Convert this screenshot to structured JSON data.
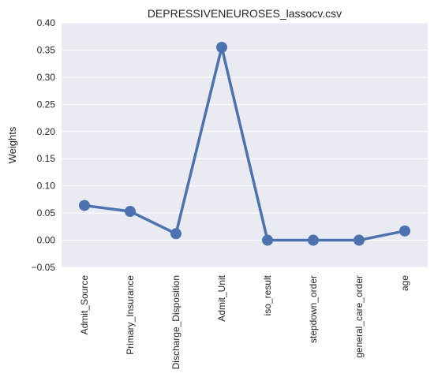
{
  "chart_data": {
    "type": "line",
    "title": "DEPRESSIVENEUROSES_lassocv.csv",
    "xlabel": "",
    "ylabel": "Weights",
    "categories": [
      "Admit_Source",
      "Primary_Insurance",
      "Discharge_Disposition",
      "Admit_Unit",
      "iso_result",
      "stepdown_order",
      "general_care_order",
      "age"
    ],
    "values": [
      0.064,
      0.053,
      0.012,
      0.355,
      0.0,
      0.0,
      0.0,
      0.017
    ],
    "ylim": [
      -0.05,
      0.4
    ],
    "yticks": [
      "−0.05",
      "0.00",
      "0.05",
      "0.10",
      "0.15",
      "0.20",
      "0.25",
      "0.30",
      "0.35",
      "0.40"
    ],
    "grid": true,
    "colors": {
      "line": "#4c72b0",
      "background": "#eaeaf2",
      "grid": "#ffffff"
    }
  }
}
